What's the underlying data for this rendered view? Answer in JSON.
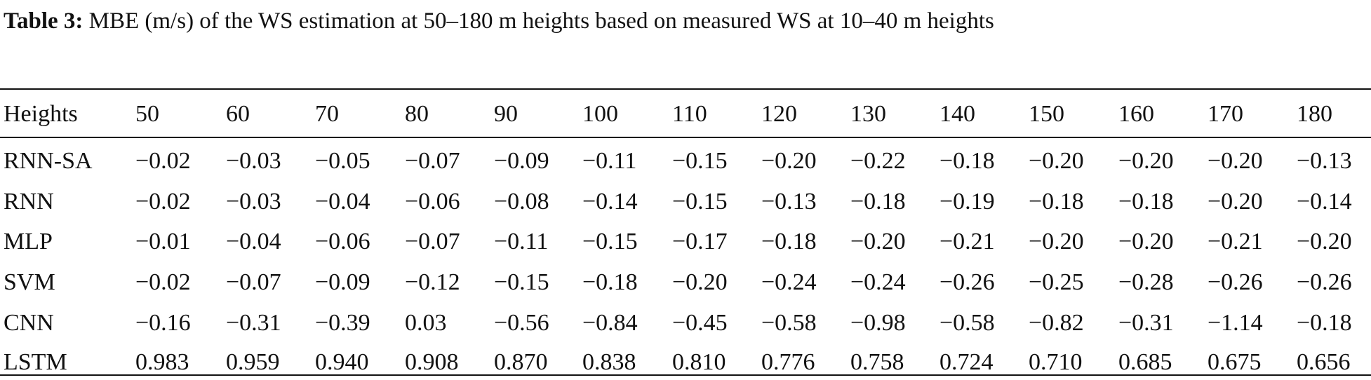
{
  "caption": {
    "label": "Table 3:",
    "text": " MBE (m/s) of the WS estimation at 50–180 m heights based on measured WS at 10–40 m heights"
  },
  "table": {
    "header": [
      "Heights",
      "50",
      "60",
      "70",
      "80",
      "90",
      "100",
      "110",
      "120",
      "130",
      "140",
      "150",
      "160",
      "170",
      "180"
    ],
    "rows": [
      [
        "RNN-SA",
        "−0.02",
        "−0.03",
        "−0.05",
        "−0.07",
        "−0.09",
        "−0.11",
        "−0.15",
        "−0.20",
        "−0.22",
        "−0.18",
        "−0.20",
        "−0.20",
        "−0.20",
        "−0.13"
      ],
      [
        "RNN",
        "−0.02",
        "−0.03",
        "−0.04",
        "−0.06",
        "−0.08",
        "−0.14",
        "−0.15",
        "−0.13",
        "−0.18",
        "−0.19",
        "−0.18",
        "−0.18",
        "−0.20",
        "−0.14"
      ],
      [
        "MLP",
        "−0.01",
        "−0.04",
        "−0.06",
        "−0.07",
        "−0.11",
        "−0.15",
        "−0.17",
        "−0.18",
        "−0.20",
        "−0.21",
        "−0.20",
        "−0.20",
        "−0.21",
        "−0.20"
      ],
      [
        "SVM",
        "−0.02",
        "−0.07",
        "−0.09",
        "−0.12",
        "−0.15",
        "−0.18",
        "−0.20",
        "−0.24",
        "−0.24",
        "−0.26",
        "−0.25",
        "−0.28",
        "−0.26",
        "−0.26"
      ],
      [
        "CNN",
        "−0.16",
        "−0.31",
        "−0.39",
        "0.03",
        "−0.56",
        "−0.84",
        "−0.45",
        "−0.58",
        "−0.98",
        "−0.58",
        "−0.82",
        "−0.31",
        "−1.14",
        "−0.18"
      ],
      [
        "LSTM",
        "0.983",
        "0.959",
        "0.940",
        "0.908",
        "0.870",
        "0.838",
        "0.810",
        "0.776",
        "0.758",
        "0.724",
        "0.710",
        "0.685",
        "0.675",
        "0.656"
      ]
    ]
  }
}
